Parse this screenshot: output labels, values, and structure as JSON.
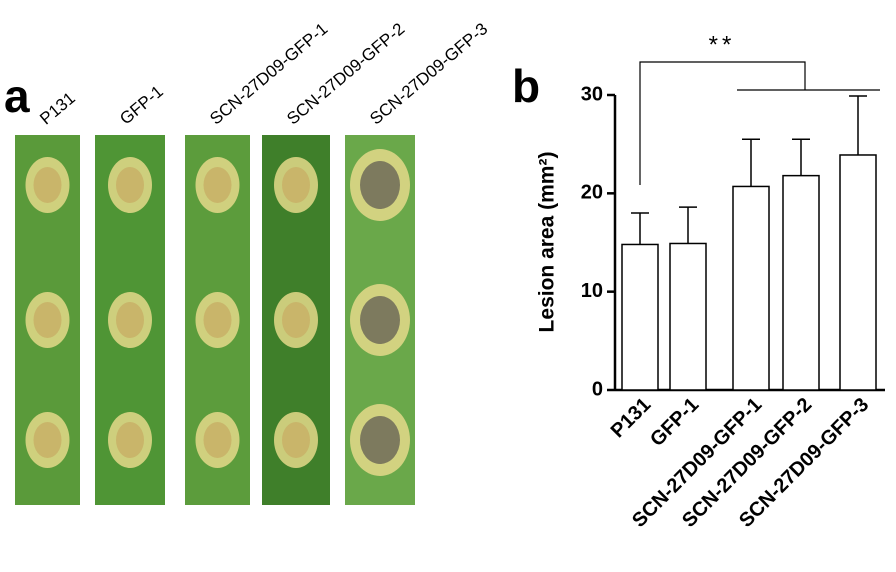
{
  "panel_a": {
    "letter": "a",
    "samples": [
      "P131",
      "GFP-1",
      "SCN-27D09-GFP-1",
      "SCN-27D09-GFP-2",
      "SCN-27D09-GFP-3"
    ]
  },
  "chart_data": {
    "type": "bar",
    "panel_letter": "b",
    "ylabel": "Lesion area (mm²)",
    "categories": [
      "P131",
      "GFP-1",
      "SCN-27D09-GFP-1",
      "SCN-27D09-GFP-2",
      "SCN-27D09-GFP-3"
    ],
    "values": [
      14.8,
      14.9,
      20.7,
      21.8,
      23.9
    ],
    "errors": [
      3.2,
      3.7,
      4.8,
      3.7,
      6.0
    ],
    "ylim": [
      0,
      30
    ],
    "yticks": [
      0,
      10,
      20,
      30
    ],
    "color": "#ffffff",
    "significance": "**"
  }
}
